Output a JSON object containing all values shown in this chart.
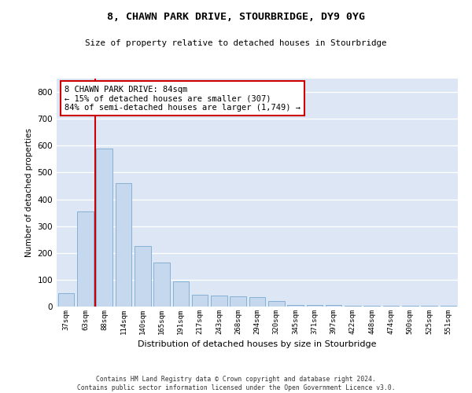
{
  "title": "8, CHAWN PARK DRIVE, STOURBRIDGE, DY9 0YG",
  "subtitle": "Size of property relative to detached houses in Stourbridge",
  "xlabel": "Distribution of detached houses by size in Stourbridge",
  "ylabel": "Number of detached properties",
  "bar_color": "#c5d8ee",
  "bar_edge_color": "#7aaad0",
  "background_color": "#dce6f5",
  "grid_color": "#ffffff",
  "annotation_line_color": "#cc0000",
  "annotation_box_color": "#cc0000",
  "annotation_text": "8 CHAWN PARK DRIVE: 84sqm\n← 15% of detached houses are smaller (307)\n84% of semi-detached houses are larger (1,749) →",
  "categories": [
    "37sqm",
    "63sqm",
    "88sqm",
    "114sqm",
    "140sqm",
    "165sqm",
    "191sqm",
    "217sqm",
    "243sqm",
    "268sqm",
    "294sqm",
    "320sqm",
    "345sqm",
    "371sqm",
    "397sqm",
    "422sqm",
    "448sqm",
    "474sqm",
    "500sqm",
    "525sqm",
    "551sqm"
  ],
  "values": [
    50,
    355,
    590,
    460,
    225,
    165,
    95,
    45,
    40,
    37,
    34,
    20,
    5,
    5,
    5,
    2,
    2,
    2,
    2,
    2,
    2
  ],
  "ylim": [
    0,
    850
  ],
  "yticks": [
    0,
    100,
    200,
    300,
    400,
    500,
    600,
    700,
    800
  ],
  "footer": "Contains HM Land Registry data © Crown copyright and database right 2024.\nContains public sector information licensed under the Open Government Licence v3.0.",
  "property_line_x": 1.5
}
